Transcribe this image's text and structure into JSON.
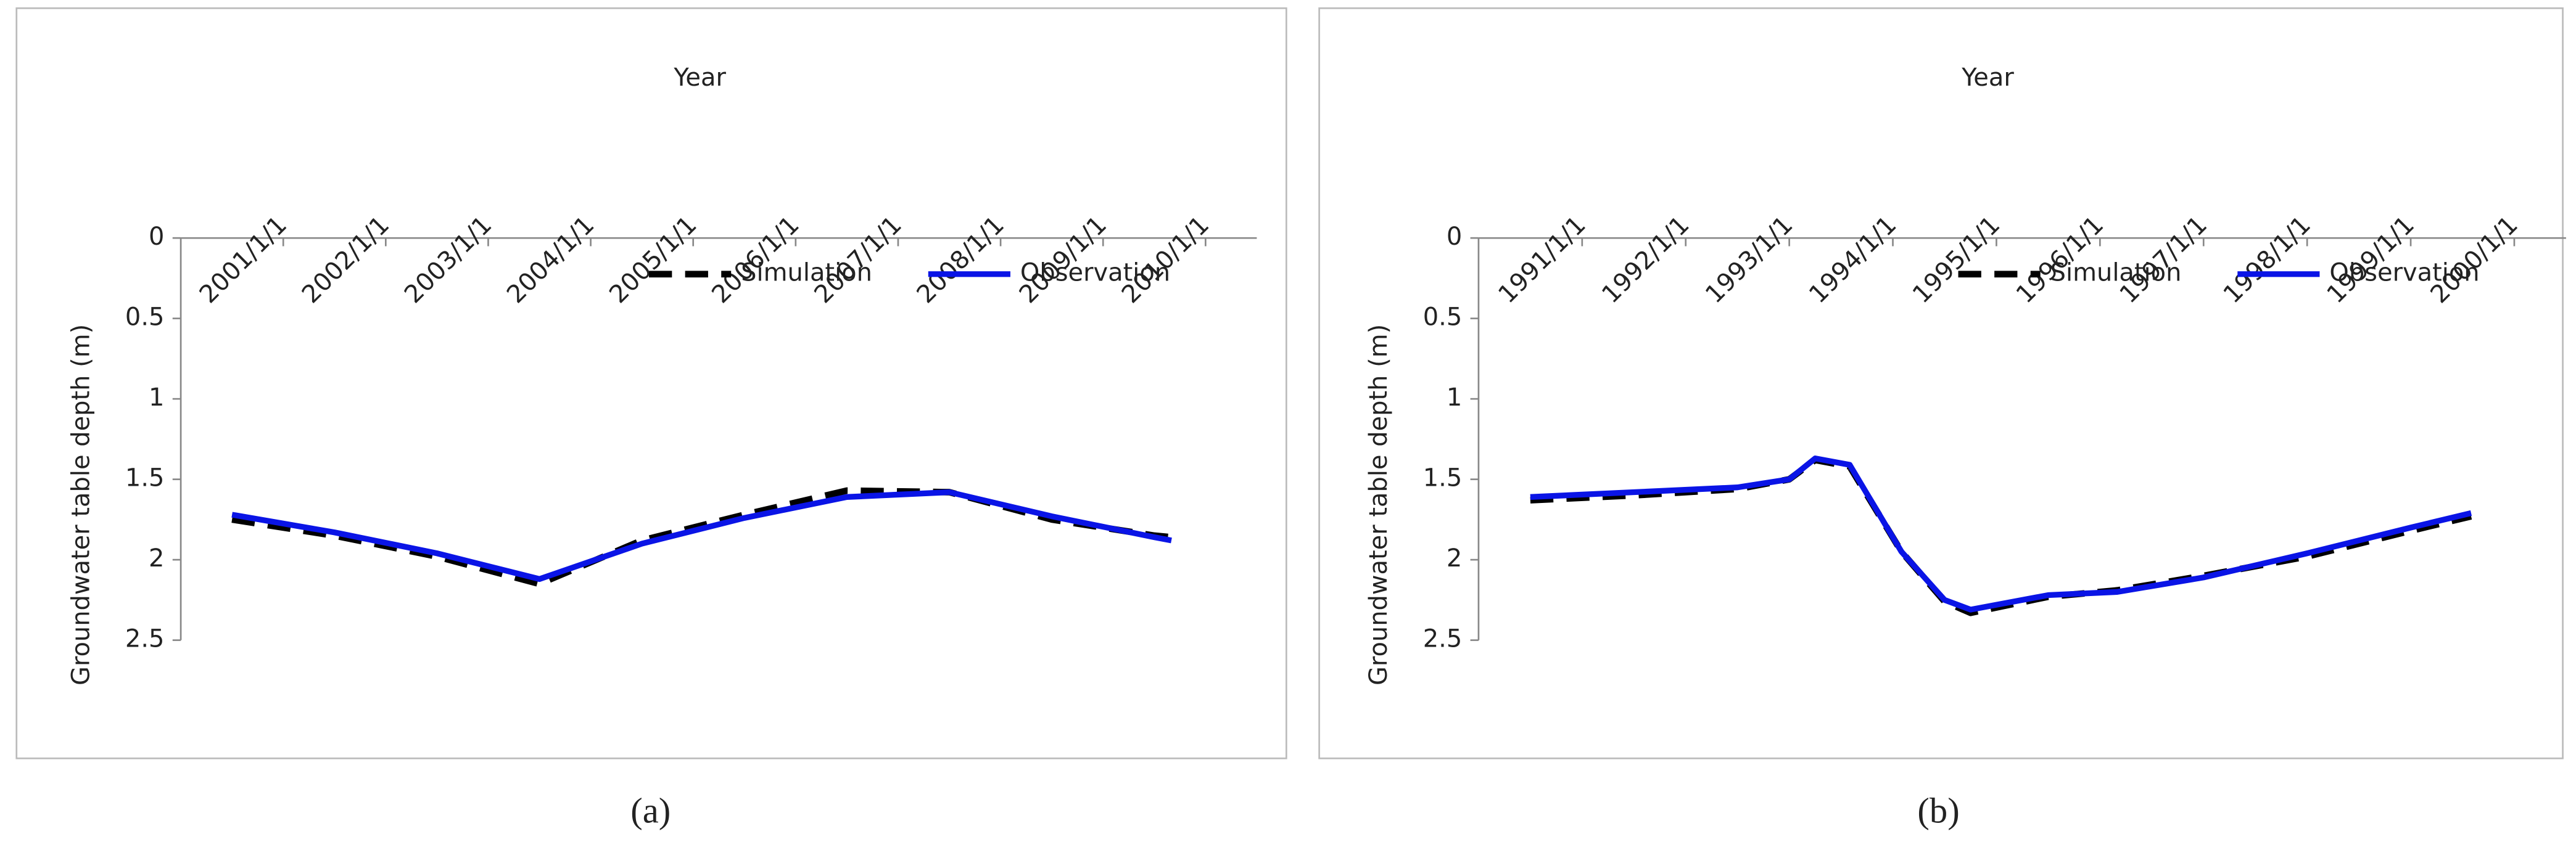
{
  "chart_data": [
    {
      "type": "line",
      "panel_label": "(a)",
      "x_label": "Year",
      "y_label": "Groundwater table depth (m)",
      "xticks": [
        "2001/1/1",
        "2002/1/1",
        "2003/1/1",
        "2004/1/1",
        "2005/1/1",
        "2006/1/1",
        "2007/1/1",
        "2008/1/1",
        "2009/1/1",
        "2010/1/1"
      ],
      "xlim": [
        "2000/1/1",
        "2010/7/1"
      ],
      "ylim": [
        0,
        2.5
      ],
      "yticks": [
        0,
        0.5,
        1,
        1.5,
        2,
        2.5
      ],
      "y_inverted": true,
      "grid": false,
      "legend": "upper right",
      "x": [
        "2000/7/1",
        "2001/7/1",
        "2002/7/1",
        "2003/7/1",
        "2004/7/1",
        "2005/7/1",
        "2006/7/1",
        "2007/7/1",
        "2008/7/1",
        "2009/7/1",
        "2009/9/1"
      ],
      "series": [
        {
          "name": "Simulation",
          "color": "#000000",
          "dashed": true,
          "values": [
            1.75,
            1.85,
            1.98,
            2.15,
            1.88,
            1.72,
            1.57,
            1.58,
            1.75,
            1.85,
            1.86
          ]
        },
        {
          "name": "Observation",
          "color": "#0a14e6",
          "dashed": false,
          "values": [
            1.72,
            1.83,
            1.96,
            2.12,
            1.9,
            1.74,
            1.61,
            1.58,
            1.73,
            1.86,
            1.88
          ]
        }
      ]
    },
    {
      "type": "line",
      "panel_label": "(b)",
      "x_label": "Year",
      "y_label": "Groundwater table depth (m)",
      "xticks": [
        "1991/1/1",
        "1992/1/1",
        "1993/1/1",
        "1994/1/1",
        "1995/1/1",
        "1996/1/1",
        "1997/1/1",
        "1998/1/1",
        "1999/1/1",
        "2000/1/1"
      ],
      "xlim": [
        "1990/1/1",
        "2000/7/1"
      ],
      "ylim": [
        0,
        2.5
      ],
      "yticks": [
        0,
        0.5,
        1,
        1.5,
        2,
        2.5
      ],
      "y_inverted": true,
      "grid": false,
      "legend": "upper right",
      "x": [
        "1990/7/1",
        "1991/7/1",
        "1992/7/1",
        "1993/1/1",
        "1993/4/1",
        "1993/8/1",
        "1994/2/1",
        "1994/7/1",
        "1994/10/1",
        "1995/7/1",
        "1996/3/1",
        "1997/1/1",
        "1998/1/1",
        "1999/1/1",
        "1999/8/1"
      ],
      "series": [
        {
          "name": "Simulation",
          "color": "#000000",
          "dashed": true,
          "values": [
            1.63,
            1.6,
            1.56,
            1.5,
            1.38,
            1.42,
            1.95,
            2.26,
            2.33,
            2.23,
            2.19,
            2.1,
            1.98,
            1.82,
            1.73
          ]
        },
        {
          "name": "Observation",
          "color": "#0a14e6",
          "dashed": false,
          "values": [
            1.61,
            1.58,
            1.55,
            1.5,
            1.37,
            1.41,
            1.95,
            2.25,
            2.31,
            2.22,
            2.2,
            2.11,
            1.96,
            1.8,
            1.71
          ]
        }
      ]
    }
  ]
}
